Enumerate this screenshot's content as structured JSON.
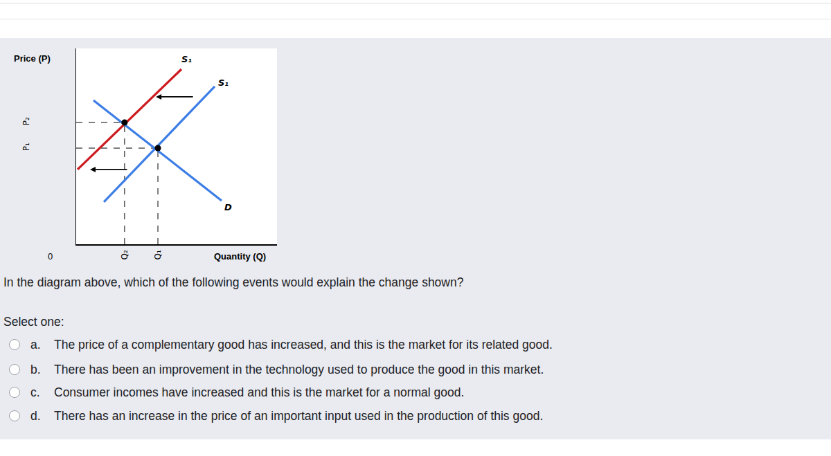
{
  "chart_data": {
    "type": "line",
    "xlabel": "Quantity (Q)",
    "ylabel": "Price (P)",
    "origin_label": "0",
    "xlim": [
      0,
      10
    ],
    "ylim": [
      0,
      10
    ],
    "xticks": [
      {
        "value": 2.41,
        "label": "Q₂"
      },
      {
        "value": 4.07,
        "label": "Q₁"
      }
    ],
    "yticks": [
      {
        "value": 6.22,
        "label": "P₂"
      },
      {
        "value": 4.91,
        "label": "P₁"
      }
    ],
    "grid": false,
    "series": [
      {
        "name": "S₁",
        "color": "#3d7ee6",
        "x": [
          1.38,
          6.9
        ],
        "values": [
          2.16,
          8.06
        ]
      },
      {
        "name": "S₁",
        "color": "#cc1a1f",
        "x": [
          0.07,
          5.24
        ],
        "values": [
          3.82,
          8.94
        ]
      },
      {
        "name": "D",
        "color": "#3d7ee6",
        "x": [
          0.86,
          7.24
        ],
        "values": [
          7.35,
          2.23
        ]
      }
    ],
    "equilibria": [
      {
        "x": 2.41,
        "y": 6.22
      },
      {
        "x": 4.07,
        "y": 4.91
      }
    ]
  },
  "question": "In the diagram above, which of the following events would explain the change shown?",
  "prompt": "Select one:",
  "options": [
    {
      "letter": "a.",
      "text": "The price of a complementary good has increased, and this is the market for its related good."
    },
    {
      "letter": "b.",
      "text": "There has been an improvement in the technology used to produce the good in this market."
    },
    {
      "letter": "c.",
      "text": "Consumer incomes have increased and this is the market for a normal good."
    },
    {
      "letter": "d.",
      "text": "There has an increase in the price of an important input used in the production of this good."
    }
  ]
}
